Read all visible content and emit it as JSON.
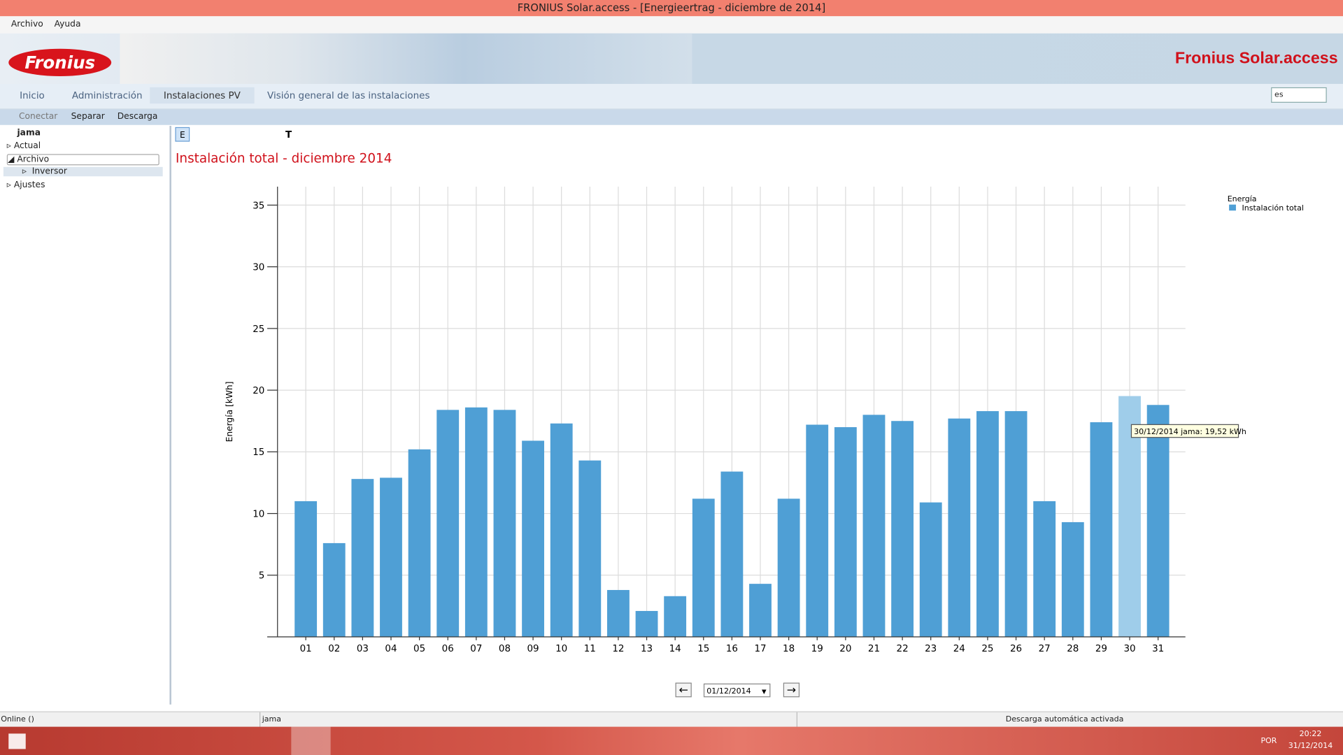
{
  "window": {
    "title": "FRONIUS Solar.access - [Energieertrag - diciembre de 2014]"
  },
  "menu": [
    "Archivo",
    "Ayuda"
  ],
  "header": {
    "logo": "Fronius",
    "brand": "Fronius Solar.access"
  },
  "tabs": [
    "Inicio",
    "Administración",
    "Instalaciones PV",
    "Visión general de las instalaciones"
  ],
  "language": "es",
  "toolbar": [
    "Conectar",
    "Separar",
    "Descarga"
  ],
  "tree": {
    "root": "jama",
    "items": [
      "Actual",
      "Archivo",
      "Inversor",
      "Ajustes"
    ]
  },
  "chart_toolbar": [
    "E",
    "T"
  ],
  "chart_data": {
    "type": "bar",
    "title": "Instalación total - diciembre 2014",
    "y_label": "Energía [kWh]",
    "categories": [
      "01",
      "02",
      "03",
      "04",
      "05",
      "06",
      "07",
      "08",
      "09",
      "10",
      "11",
      "12",
      "13",
      "14",
      "15",
      "16",
      "17",
      "18",
      "19",
      "20",
      "21",
      "22",
      "23",
      "24",
      "25",
      "26",
      "27",
      "28",
      "29",
      "30",
      "31"
    ],
    "series": [
      {
        "name": "Instalación total",
        "color": "#4f9fd5",
        "values": [
          11.0,
          7.6,
          12.8,
          12.9,
          15.2,
          18.4,
          18.6,
          18.4,
          15.9,
          17.3,
          14.3,
          3.8,
          2.1,
          3.3,
          11.2,
          13.4,
          4.3,
          11.2,
          17.2,
          17.0,
          18.0,
          17.5,
          10.9,
          17.7,
          18.3,
          18.3,
          11.0,
          9.3,
          17.4,
          19.52,
          18.8
        ]
      }
    ],
    "legend_title": "Energía",
    "legend": "top-right",
    "ylim": [
      0,
      36.5
    ],
    "yticks": [
      5,
      10,
      15,
      20,
      25,
      30,
      35
    ],
    "grid": true,
    "highlight": 29,
    "highlight_color": "#9fcdea",
    "tooltip": "30/12/2014 jama: 19,52 kWh"
  },
  "date_field": "01/12/2014",
  "status": [
    "Online ()",
    "jama",
    "Descarga automática activada"
  ],
  "taskbar": {
    "language": "POR",
    "time": "20:22",
    "date": "31/12/2014"
  }
}
